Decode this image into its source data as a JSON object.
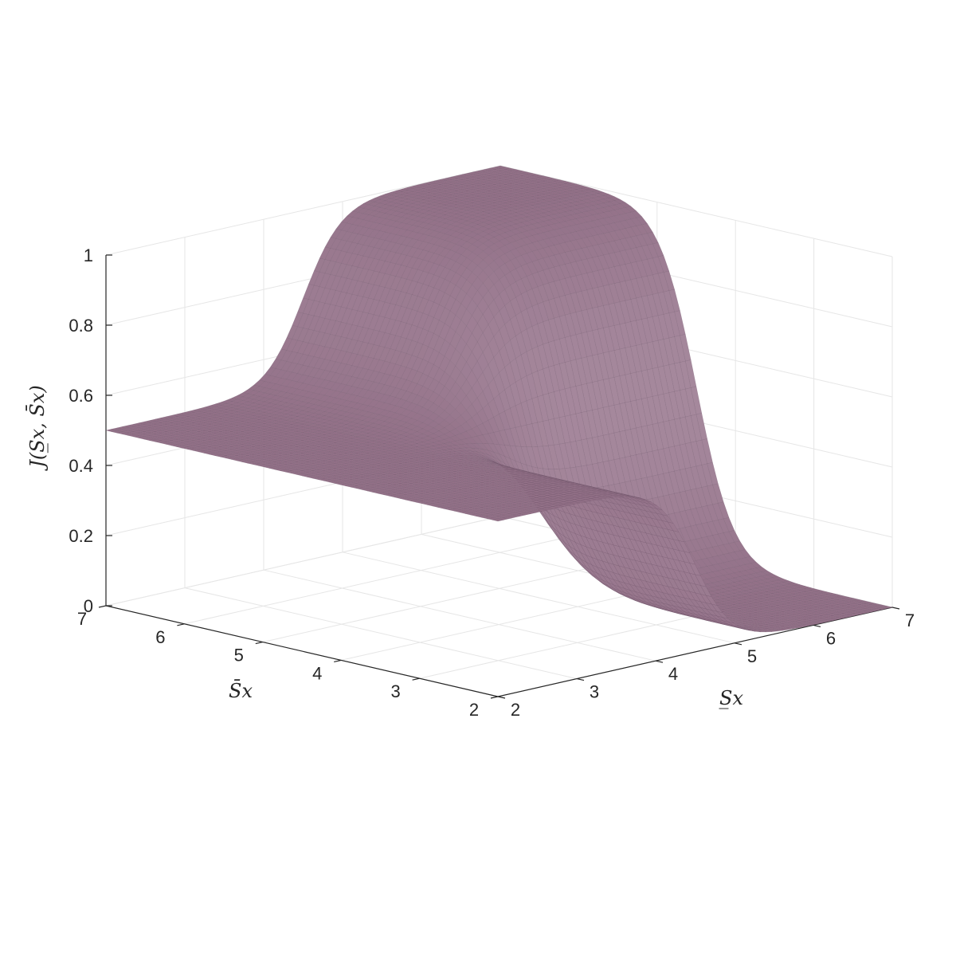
{
  "chart_data": {
    "type": "surface",
    "title": "",
    "xlabel": "S̲x",
    "ylabel": "S̄x",
    "zlabel": "J(S̲x, S̄x)",
    "x_ticks": [
      "2",
      "3",
      "4",
      "5",
      "6",
      "7"
    ],
    "y_ticks": [
      "2",
      "3",
      "4",
      "5",
      "6",
      "7"
    ],
    "z_ticks": [
      "0",
      "0.2",
      "0.4",
      "0.6",
      "0.8",
      "1"
    ],
    "xlim": [
      2,
      7
    ],
    "ylim": [
      2,
      7
    ],
    "zlim": [
      0,
      1
    ],
    "grid": true,
    "surface_color": "#927087",
    "edge_color": "#6f5568",
    "surface_values": {
      "at_x2_y2": 0.5,
      "at_x2_y7": 0.5,
      "at_x7_y7": 1.0,
      "at_x7_y2": 0.0,
      "plateau_high_region": "x>4.5 and y>4.5",
      "plateau_low_region": "x>4.5 and y<4.5",
      "flat_level_elsewhere": 0.5
    }
  }
}
